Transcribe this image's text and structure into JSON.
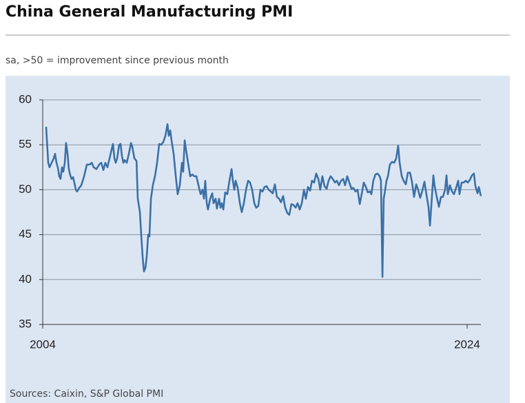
{
  "chart_data": {
    "type": "line",
    "title": "China General Manufacturing PMI",
    "subtitle": "sa, >50 = improvement since previous month",
    "source": "Sources: Caixin, S&P Global PMI",
    "color": "#3b70a6",
    "grid": true,
    "xlim": [
      2004,
      2024.65
    ],
    "xticks": [
      2004,
      2024
    ],
    "ylim": [
      35,
      60
    ],
    "yticks": [
      35,
      40,
      45,
      50,
      55,
      60
    ],
    "x": [
      2004.16,
      2004.26,
      2004.32,
      2004.42,
      2004.52,
      2004.58,
      2004.65,
      2004.71,
      2004.78,
      2004.84,
      2004.91,
      2004.97,
      2005.04,
      2005.1,
      2005.17,
      2005.23,
      2005.3,
      2005.36,
      2005.43,
      2005.49,
      2005.56,
      2005.62,
      2005.72,
      2005.82,
      2005.95,
      2006.08,
      2006.21,
      2006.31,
      2006.4,
      2006.53,
      2006.66,
      2006.76,
      2006.86,
      2006.95,
      2007.05,
      2007.15,
      2007.25,
      2007.31,
      2007.38,
      2007.44,
      2007.51,
      2007.6,
      2007.67,
      2007.73,
      2007.8,
      2007.86,
      2007.96,
      2008.06,
      2008.16,
      2008.22,
      2008.32,
      2008.42,
      2008.48,
      2008.58,
      2008.64,
      2008.71,
      2008.77,
      2008.84,
      2008.9,
      2008.97,
      2009.03,
      2009.1,
      2009.19,
      2009.29,
      2009.39,
      2009.49,
      2009.58,
      2009.68,
      2009.78,
      2009.88,
      2009.94,
      2010.01,
      2010.07,
      2010.17,
      2010.27,
      2010.36,
      2010.46,
      2010.56,
      2010.62,
      2010.69,
      2010.75,
      2010.85,
      2010.95,
      2011.05,
      2011.14,
      2011.24,
      2011.34,
      2011.44,
      2011.53,
      2011.6,
      2011.66,
      2011.73,
      2011.79,
      2011.89,
      2011.99,
      2012.05,
      2012.15,
      2012.21,
      2012.31,
      2012.38,
      2012.44,
      2012.51,
      2012.6,
      2012.7,
      2012.8,
      2012.9,
      2012.96,
      2013.03,
      2013.09,
      2013.19,
      2013.29,
      2013.38,
      2013.48,
      2013.58,
      2013.68,
      2013.77,
      2013.87,
      2013.97,
      2014.06,
      2014.16,
      2014.26,
      2014.36,
      2014.45,
      2014.55,
      2014.65,
      2014.75,
      2014.84,
      2014.94,
      2015.04,
      2015.14,
      2015.23,
      2015.33,
      2015.43,
      2015.53,
      2015.62,
      2015.72,
      2015.82,
      2015.92,
      2016.01,
      2016.11,
      2016.21,
      2016.31,
      2016.4,
      2016.5,
      2016.6,
      2016.69,
      2016.79,
      2016.89,
      2016.99,
      2017.08,
      2017.18,
      2017.28,
      2017.38,
      2017.47,
      2017.57,
      2017.67,
      2017.77,
      2017.86,
      2017.96,
      2018.06,
      2018.16,
      2018.25,
      2018.35,
      2018.45,
      2018.55,
      2018.64,
      2018.74,
      2018.84,
      2018.94,
      2019.03,
      2019.13,
      2019.23,
      2019.32,
      2019.42,
      2019.49,
      2019.58,
      2019.68,
      2019.78,
      2019.88,
      2019.94,
      2020.01,
      2020.07,
      2020.14,
      2020.2,
      2020.27,
      2020.36,
      2020.46,
      2020.56,
      2020.66,
      2020.75,
      2020.82,
      2020.92,
      2021.01,
      2021.11,
      2021.21,
      2021.31,
      2021.4,
      2021.5,
      2021.6,
      2021.69,
      2021.79,
      2021.89,
      2021.99,
      2022.08,
      2022.18,
      2022.25,
      2022.31,
      2022.41,
      2022.47,
      2022.57,
      2022.67,
      2022.77,
      2022.86,
      2022.96,
      2023.03,
      2023.09,
      2023.19,
      2023.29,
      2023.38,
      2023.48,
      2023.58,
      2023.64,
      2023.74,
      2023.84,
      2023.94,
      2024.03,
      2024.13,
      2024.23,
      2024.32,
      2024.39,
      2024.49,
      2024.55,
      2024.65
    ],
    "values": [
      57.0,
      53.0,
      52.5,
      53.0,
      53.5,
      54.0,
      53.0,
      52.5,
      51.5,
      51.2,
      52.5,
      52.0,
      53.0,
      55.2,
      54.0,
      52.3,
      51.6,
      51.2,
      51.4,
      50.8,
      50.0,
      49.8,
      50.2,
      50.5,
      51.5,
      52.8,
      52.8,
      53.0,
      52.5,
      52.3,
      52.8,
      53.0,
      52.2,
      53.0,
      52.5,
      53.5,
      54.5,
      55.1,
      53.5,
      53.0,
      53.5,
      55.0,
      55.1,
      53.8,
      53.0,
      53.3,
      53.0,
      54.0,
      55.2,
      54.8,
      53.5,
      53.2,
      49.0,
      47.5,
      45.0,
      42.5,
      40.9,
      41.3,
      42.5,
      45.0,
      44.8,
      49.0,
      50.5,
      51.5,
      53.0,
      55.1,
      55.0,
      55.3,
      56.0,
      57.3,
      56.0,
      56.6,
      55.5,
      54.0,
      51.5,
      49.5,
      50.5,
      53.0,
      52.0,
      55.5,
      54.5,
      53.0,
      51.5,
      51.7,
      51.5,
      51.5,
      50.5,
      49.5,
      50.0,
      49.0,
      51.0,
      48.5,
      47.8,
      49.0,
      49.6,
      48.5,
      49.0,
      47.9,
      49.0,
      48.0,
      48.5,
      47.8,
      49.7,
      49.5,
      51.0,
      52.3,
      51.0,
      50.0,
      51.0,
      50.2,
      48.5,
      47.5,
      48.5,
      50.0,
      51.0,
      50.8,
      50.0,
      48.5,
      48.0,
      48.2,
      50.0,
      49.8,
      50.3,
      50.4,
      50.0,
      49.8,
      49.6,
      50.6,
      49.2,
      49.0,
      48.6,
      49.3,
      48.0,
      47.4,
      47.2,
      48.4,
      48.3,
      48.0,
      48.5,
      47.8,
      48.5,
      50.0,
      49.0,
      50.3,
      49.9,
      51.0,
      50.8,
      51.8,
      51.2,
      50.0,
      51.5,
      50.4,
      50.1,
      51.0,
      51.5,
      51.2,
      50.8,
      51.0,
      50.5,
      51.0,
      51.2,
      50.5,
      51.5,
      50.8,
      50.1,
      50.2,
      49.8,
      50.0,
      48.4,
      49.5,
      50.8,
      50.3,
      49.7,
      49.8,
      49.5,
      51.0,
      51.7,
      51.8,
      51.5,
      51.0,
      40.3,
      49.0,
      50.0,
      51.0,
      51.5,
      52.8,
      53.1,
      53.0,
      53.5,
      54.9,
      53.0,
      51.5,
      51.0,
      50.6,
      51.9,
      51.9,
      50.9,
      49.2,
      50.6,
      50.0,
      49.1,
      49.9,
      50.9,
      49.5,
      48.1,
      46.0,
      48.1,
      51.6,
      50.4,
      49.2,
      48.1,
      49.2,
      49.2,
      50.0,
      51.6,
      49.5,
      50.5,
      49.8,
      49.5,
      50.2,
      51.0,
      49.5,
      50.8,
      50.8,
      51.0,
      50.8,
      51.1,
      51.6,
      51.8,
      50.4,
      49.6,
      50.3,
      49.3
    ]
  }
}
